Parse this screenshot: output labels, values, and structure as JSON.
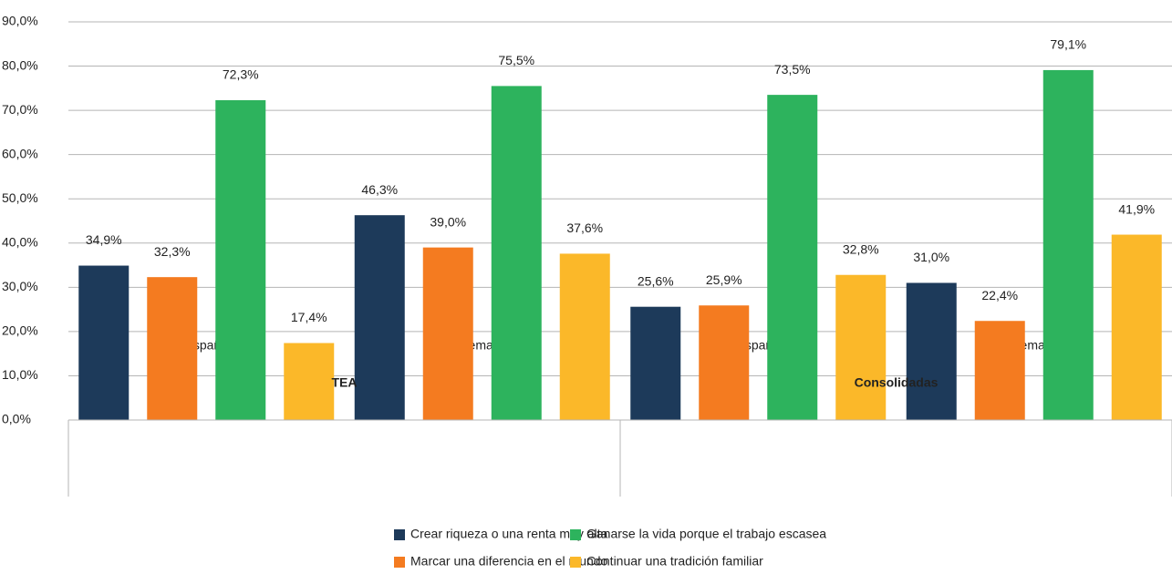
{
  "chart_data": {
    "type": "bar",
    "groups": [
      {
        "name": "TEA",
        "categories": [
          "España",
          "Extremadura"
        ]
      },
      {
        "name": "Consolidadas",
        "categories": [
          "España",
          "Extremadura"
        ]
      }
    ],
    "series": [
      {
        "name": "Crear riqueza o una renta muy alta",
        "color": "#1d3a5a",
        "values": [
          34.9,
          46.3,
          25.6,
          31.0
        ],
        "value_labels": [
          "34,9%",
          "46,3%",
          "25,6%",
          "31,0%"
        ]
      },
      {
        "name": "Marcar una diferencia en el mundo",
        "color": "#f47b20",
        "values": [
          32.3,
          39.0,
          25.9,
          22.4
        ],
        "value_labels": [
          "32,3%",
          "39,0%",
          "25,9%",
          "22,4%"
        ]
      },
      {
        "name": "Ganarse la vida porque el trabajo escasea",
        "color": "#2db35d",
        "values": [
          72.3,
          75.5,
          73.5,
          79.1
        ],
        "value_labels": [
          "72,3%",
          "75,5%",
          "73,5%",
          "79,1%"
        ]
      },
      {
        "name": "Continuar una tradición familiar",
        "color": "#fbb829",
        "values": [
          17.4,
          37.6,
          32.8,
          41.9
        ],
        "value_labels": [
          "17,4%",
          "37,6%",
          "32,8%",
          "41,9%"
        ]
      }
    ],
    "ylim": [
      0,
      90
    ],
    "yticks": [
      {
        "value": 0,
        "label": "0,0%"
      },
      {
        "value": 10,
        "label": "10,0%"
      },
      {
        "value": 20,
        "label": "20,0%"
      },
      {
        "value": 30,
        "label": "30,0%"
      },
      {
        "value": 40,
        "label": "40,0%"
      },
      {
        "value": 50,
        "label": "50,0%"
      },
      {
        "value": 60,
        "label": "60,0%"
      },
      {
        "value": 70,
        "label": "70,0%"
      },
      {
        "value": 80,
        "label": "80,0%"
      },
      {
        "value": 90,
        "label": "90,0%"
      }
    ],
    "grid": true
  }
}
